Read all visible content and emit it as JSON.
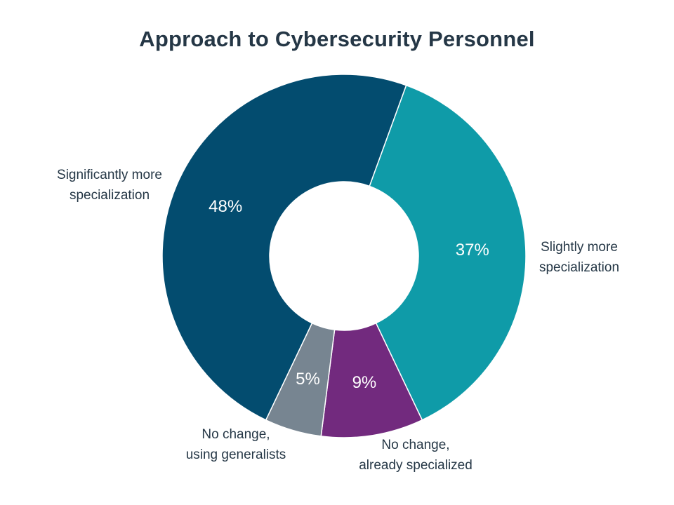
{
  "chart_data": {
    "type": "pie",
    "variant": "donut",
    "title": "Approach to Cybersecurity Personnel",
    "series": [
      {
        "name": "Slightly more specialization",
        "label_lines": [
          "Slightly more",
          "specialization"
        ],
        "value": 37,
        "value_label": "37%",
        "color": "#0F9BA8"
      },
      {
        "name": "No change, already specialized",
        "label_lines": [
          "No change,",
          "already specialized"
        ],
        "value": 9,
        "value_label": "9%",
        "color": "#722A7E"
      },
      {
        "name": "No change, using generalists",
        "label_lines": [
          "No change,",
          "using generalists"
        ],
        "value": 5,
        "value_label": "5%",
        "color": "#778591"
      },
      {
        "name": "Significantly more specialization",
        "label_lines": [
          "Significantly more",
          "specialization"
        ],
        "value": 48,
        "value_label": "48%",
        "color": "#034C6F"
      }
    ],
    "start_angle_deg": 20,
    "direction": "clockwise",
    "legend": "none"
  }
}
